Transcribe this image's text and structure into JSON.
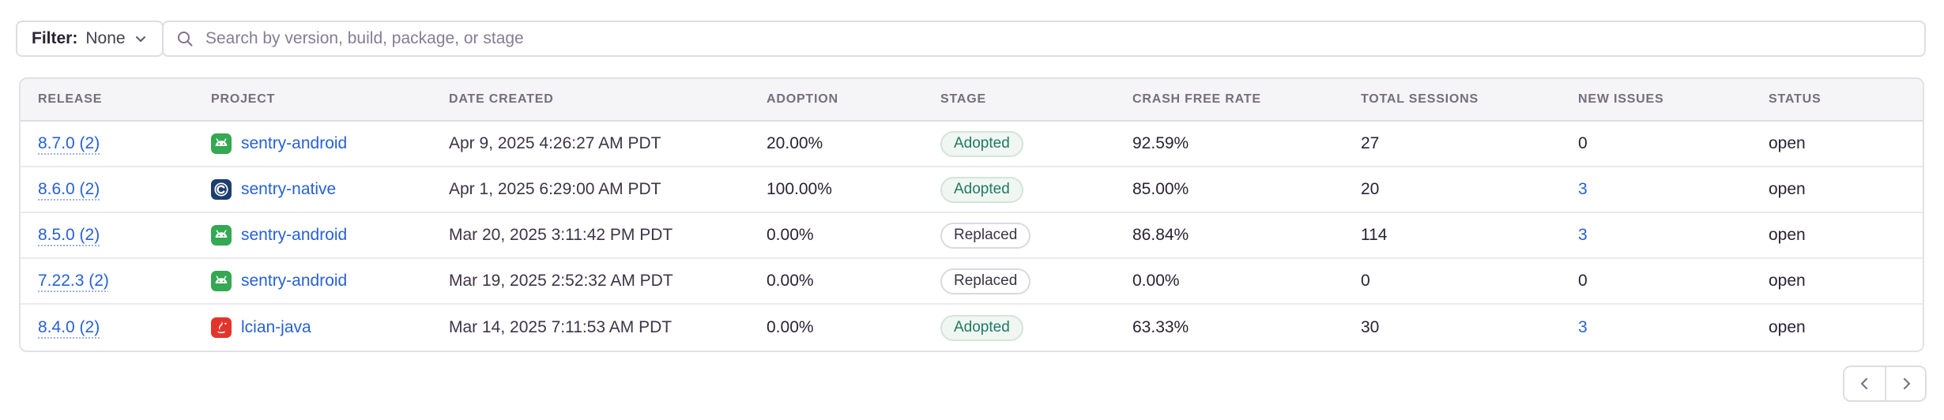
{
  "filter": {
    "label": "Filter:",
    "value": "None"
  },
  "search": {
    "placeholder": "Search by version, build, package, or stage",
    "value": ""
  },
  "table": {
    "columns": [
      "RELEASE",
      "PROJECT",
      "DATE CREATED",
      "ADOPTION",
      "STAGE",
      "CRASH FREE RATE",
      "TOTAL SESSIONS",
      "NEW ISSUES",
      "STATUS"
    ],
    "rows": [
      {
        "release": "8.7.0 (2)",
        "project": "sentry-android",
        "platform": "android-icon",
        "date_created": "Apr 9, 2025 4:26:27 AM PDT",
        "adoption": "20.00%",
        "stage": "Adopted",
        "crash_free_rate": "92.59%",
        "total_sessions": "27",
        "new_issues": "0",
        "new_issues_is_link": false,
        "status": "open"
      },
      {
        "release": "8.6.0 (2)",
        "project": "sentry-native",
        "platform": "c-native-icon",
        "date_created": "Apr 1, 2025 6:29:00 AM PDT",
        "adoption": "100.00%",
        "stage": "Adopted",
        "crash_free_rate": "85.00%",
        "total_sessions": "20",
        "new_issues": "3",
        "new_issues_is_link": true,
        "status": "open"
      },
      {
        "release": "8.5.0 (2)",
        "project": "sentry-android",
        "platform": "android-icon",
        "date_created": "Mar 20, 2025 3:11:42 PM PDT",
        "adoption": "0.00%",
        "stage": "Replaced",
        "crash_free_rate": "86.84%",
        "total_sessions": "114",
        "new_issues": "3",
        "new_issues_is_link": true,
        "status": "open"
      },
      {
        "release": "7.22.3 (2)",
        "project": "sentry-android",
        "platform": "android-icon",
        "date_created": "Mar 19, 2025 2:52:32 AM PDT",
        "adoption": "0.00%",
        "stage": "Replaced",
        "crash_free_rate": "0.00%",
        "total_sessions": "0",
        "new_issues": "0",
        "new_issues_is_link": false,
        "status": "open"
      },
      {
        "release": "8.4.0 (2)",
        "project": "lcian-java",
        "platform": "java-icon",
        "date_created": "Mar 14, 2025 7:11:53 AM PDT",
        "adoption": "0.00%",
        "stage": "Adopted",
        "crash_free_rate": "63.33%",
        "total_sessions": "30",
        "new_issues": "3",
        "new_issues_is_link": true,
        "status": "open"
      }
    ]
  },
  "pagination": {
    "previous_icon": "chevron-left-icon",
    "next_icon": "chevron-right-icon"
  },
  "colors": {
    "link_blue": "#2760d8",
    "adopted_green_text": "#1e7b62",
    "adopted_green_bg": "#f0f6f2",
    "replaced_text": "#3a3444",
    "header_text": "#756e7e",
    "body_text": "#2b2233",
    "header_bg": "#f5f4f7",
    "border": "#e0dce5",
    "android_green": "#34a853",
    "native_navy": "#1d3e6e",
    "java_red": "#e3342b"
  }
}
